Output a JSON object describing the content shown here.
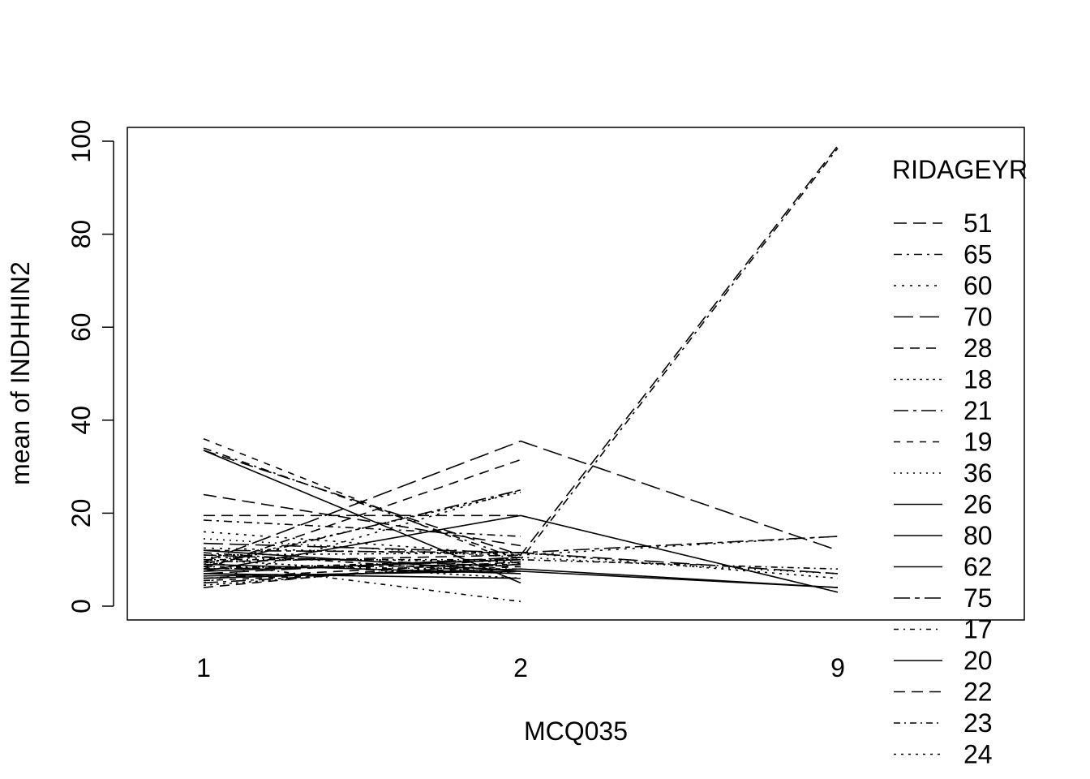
{
  "chart_data": {
    "type": "line",
    "title": "",
    "xlabel": "MCQ035",
    "ylabel": "mean of  INDHHIN2",
    "categories": [
      "1",
      "2",
      "9"
    ],
    "ylim": [
      0,
      100
    ],
    "yticks": [
      "0",
      "20",
      "40",
      "60",
      "80",
      "100"
    ],
    "grid": false,
    "legend_position": "right",
    "legend_title": "RIDAGEYR",
    "legend_entries": [
      "51",
      "65",
      "60",
      "70",
      "28",
      "18",
      "21",
      "19",
      "36",
      "26",
      "80",
      "62",
      "75",
      "17",
      "20",
      "22",
      "23",
      "24"
    ],
    "series": [
      {
        "name": "51",
        "values": [
          33.5,
          11,
          99
        ]
      },
      {
        "name": "65",
        "values": [
          34,
          10,
          98.5
        ]
      },
      {
        "name": "60",
        "values": [
          5,
          25,
          null
        ]
      },
      {
        "name": "70",
        "values": [
          9.5,
          35.5,
          12
        ]
      },
      {
        "name": "28",
        "values": [
          8,
          31.5,
          null
        ]
      },
      {
        "name": "18",
        "values": [
          9,
          24.5,
          null
        ]
      },
      {
        "name": "21",
        "values": [
          8.5,
          25,
          null
        ]
      },
      {
        "name": "19",
        "values": [
          36,
          9,
          null
        ]
      },
      {
        "name": "36",
        "values": [
          14.5,
          10.5,
          7
        ]
      },
      {
        "name": "26",
        "values": [
          7.5,
          19.5,
          3
        ]
      },
      {
        "name": "80",
        "values": [
          33.5,
          5,
          null
        ]
      },
      {
        "name": "62",
        "values": [
          6,
          8,
          4
        ]
      },
      {
        "name": "75",
        "values": [
          12,
          11.5,
          15
        ]
      },
      {
        "name": "17",
        "values": [
          9.5,
          1,
          null
        ]
      },
      {
        "name": "20",
        "values": [
          12,
          7.5,
          4
        ]
      },
      {
        "name": "22",
        "values": [
          19.5,
          19.5,
          null
        ]
      },
      {
        "name": "23",
        "values": [
          8,
          10,
          8
        ]
      },
      {
        "name": "24",
        "values": [
          11,
          11.5,
          6
        ]
      },
      {
        "values": [
          24,
          13,
          null
        ]
      },
      {
        "values": [
          18.5,
          15,
          null
        ]
      },
      {
        "values": [
          16,
          11,
          15
        ]
      },
      {
        "values": [
          13.5,
          11.5,
          7
        ]
      },
      {
        "values": [
          4,
          10.5,
          null
        ]
      },
      {
        "values": [
          4.5,
          9.5,
          null
        ]
      },
      {
        "values": [
          5,
          9,
          null
        ]
      },
      {
        "values": [
          5.5,
          8.5,
          null
        ]
      },
      {
        "values": [
          6,
          8,
          null
        ]
      },
      {
        "values": [
          6.5,
          7.5,
          null
        ]
      },
      {
        "values": [
          7,
          6,
          null
        ]
      },
      {
        "values": [
          7.5,
          10,
          null
        ]
      },
      {
        "values": [
          8,
          9,
          null
        ]
      },
      {
        "values": [
          8.5,
          8,
          null
        ]
      },
      {
        "values": [
          9,
          7,
          null
        ]
      },
      {
        "values": [
          9.5,
          11,
          null
        ]
      },
      {
        "values": [
          10,
          10,
          null
        ]
      },
      {
        "values": [
          10.5,
          9.5,
          null
        ]
      },
      {
        "values": [
          11,
          8.5,
          null
        ]
      },
      {
        "values": [
          11.5,
          7,
          null
        ]
      },
      {
        "values": [
          12.5,
          11,
          null
        ]
      },
      {
        "values": [
          7,
          10.5,
          null
        ]
      },
      {
        "values": [
          6,
          9.5,
          null
        ]
      },
      {
        "values": [
          10,
          6,
          null
        ]
      }
    ]
  }
}
